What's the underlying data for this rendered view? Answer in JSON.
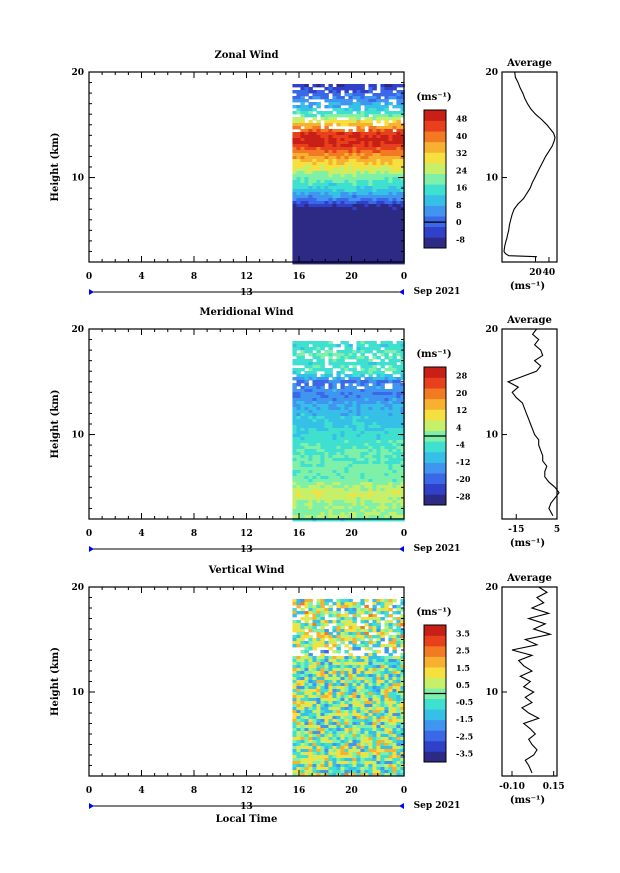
{
  "chart_data": [
    {
      "type": "heatmap",
      "title": "Zonal Wind",
      "ylabel": "Height (km)",
      "ylim": [
        2,
        20
      ],
      "yticks": [
        "20",
        "10"
      ],
      "xticks": [
        "0",
        "4",
        "8",
        "12",
        "16",
        "20",
        "0"
      ],
      "day_label": "13",
      "date_label": "Sep 2021",
      "data_start_hour": 15.5,
      "colorbar_unit": "(ms⁻¹)",
      "colorbar_labels": [
        "48",
        "40",
        "32",
        "24",
        "16",
        "8",
        "0",
        "-8"
      ],
      "colorbar_range": [
        -12,
        52
      ],
      "colors": [
        "#2d2a86",
        "#3040c8",
        "#3a68e6",
        "#3f95ef",
        "#36c0e8",
        "#3fe0d0",
        "#7ff0a8",
        "#c6f06a",
        "#f5e040",
        "#f7b030",
        "#f27a22",
        "#e8401c",
        "#c81f16"
      ],
      "profile_levels": [
        {
          "h": 2.5,
          "v": 22
        },
        {
          "h": 2.6,
          "v": -20
        },
        {
          "h": 2.8,
          "v": -25
        },
        {
          "h": 3.0,
          "v": -27
        },
        {
          "h": 3.5,
          "v": -26
        },
        {
          "h": 4.0,
          "v": -24
        },
        {
          "h": 4.2,
          "v": -23
        },
        {
          "h": 4.5,
          "v": -22
        },
        {
          "h": 5.0,
          "v": -20
        },
        {
          "h": 5.5,
          "v": -19
        },
        {
          "h": 6.0,
          "v": -17
        },
        {
          "h": 6.5,
          "v": -15
        },
        {
          "h": 7.0,
          "v": -12
        },
        {
          "h": 7.5,
          "v": -6
        },
        {
          "h": 8.0,
          "v": 2
        },
        {
          "h": 8.5,
          "v": 7
        },
        {
          "h": 9.0,
          "v": 12
        },
        {
          "h": 9.5,
          "v": 15
        },
        {
          "h": 10.0,
          "v": 19
        },
        {
          "h": 10.5,
          "v": 23
        },
        {
          "h": 11.0,
          "v": 27
        },
        {
          "h": 11.5,
          "v": 31
        },
        {
          "h": 12.0,
          "v": 35
        },
        {
          "h": 12.5,
          "v": 40
        },
        {
          "h": 13.0,
          "v": 45
        },
        {
          "h": 13.5,
          "v": 48
        },
        {
          "h": 13.8,
          "v": 49
        },
        {
          "h": 14.2,
          "v": 47
        },
        {
          "h": 14.6,
          "v": 42
        },
        {
          "h": 15.0,
          "v": 37
        },
        {
          "h": 15.5,
          "v": 29
        },
        {
          "h": 16.0,
          "v": 20
        },
        {
          "h": 16.5,
          "v": 13
        },
        {
          "h": 17.0,
          "v": 8
        },
        {
          "h": 17.5,
          "v": 4
        },
        {
          "h": 18.0,
          "v": 1
        },
        {
          "h": 18.5,
          "v": -3
        },
        {
          "h": 19.0,
          "v": -6
        },
        {
          "h": 19.5,
          "v": -10
        },
        {
          "h": 20.0,
          "v": -11
        }
      ],
      "profile_title": "Average",
      "profile_xticks": [
        {
          "v": 20,
          "label": "20"
        },
        {
          "v": 40,
          "label": "40"
        }
      ],
      "profile_xlim": [
        -30,
        52
      ],
      "profile_unit": "(ms⁻¹)"
    },
    {
      "type": "heatmap",
      "title": "Meridional Wind",
      "ylabel": "Height (km)",
      "ylim": [
        2,
        20
      ],
      "yticks": [
        "20",
        "10"
      ],
      "xticks": [
        "0",
        "4",
        "8",
        "12",
        "16",
        "20",
        "0"
      ],
      "day_label": "13",
      "date_label": "Sep 2021",
      "data_start_hour": 15.5,
      "colorbar_unit": "(ms⁻¹)",
      "colorbar_labels": [
        "28",
        "20",
        "12",
        "4",
        "-4",
        "-12",
        "-20",
        "-28"
      ],
      "colorbar_range": [
        -32,
        32
      ],
      "colors": [
        "#2d2a86",
        "#3040c8",
        "#3a68e6",
        "#3f95ef",
        "#36c0e8",
        "#3fe0d0",
        "#7ff0a8",
        "#c6f06a",
        "#f5e040",
        "#f7b030",
        "#f27a22",
        "#e8401c",
        "#c81f16"
      ],
      "profile_levels": [
        {
          "h": 2.3,
          "v": 3
        },
        {
          "h": 3.0,
          "v": 1
        },
        {
          "h": 3.5,
          "v": 2
        },
        {
          "h": 4.0,
          "v": 4
        },
        {
          "h": 4.5,
          "v": 6
        },
        {
          "h": 5.0,
          "v": 4
        },
        {
          "h": 5.5,
          "v": 1
        },
        {
          "h": 6.0,
          "v": -1
        },
        {
          "h": 6.5,
          "v": -1
        },
        {
          "h": 7.0,
          "v": 0
        },
        {
          "h": 7.5,
          "v": -2
        },
        {
          "h": 8.0,
          "v": -2
        },
        {
          "h": 8.5,
          "v": -3
        },
        {
          "h": 9.0,
          "v": -4
        },
        {
          "h": 9.5,
          "v": -4
        },
        {
          "h": 10.0,
          "v": -6
        },
        {
          "h": 10.5,
          "v": -7
        },
        {
          "h": 11.0,
          "v": -8
        },
        {
          "h": 11.5,
          "v": -9
        },
        {
          "h": 12.0,
          "v": -10
        },
        {
          "h": 12.5,
          "v": -11
        },
        {
          "h": 13.0,
          "v": -12
        },
        {
          "h": 13.5,
          "v": -15
        },
        {
          "h": 14.0,
          "v": -17
        },
        {
          "h": 14.5,
          "v": -14
        },
        {
          "h": 15.0,
          "v": -19
        },
        {
          "h": 15.5,
          "v": -12
        },
        {
          "h": 16.0,
          "v": -5
        },
        {
          "h": 16.5,
          "v": -3
        },
        {
          "h": 17.0,
          "v": -6
        },
        {
          "h": 17.5,
          "v": -2
        },
        {
          "h": 18.0,
          "v": -3
        },
        {
          "h": 18.5,
          "v": -6
        },
        {
          "h": 19.0,
          "v": -4
        },
        {
          "h": 19.5,
          "v": -7
        },
        {
          "h": 20.0,
          "v": -5
        }
      ],
      "profile_title": "Average",
      "profile_xticks": [
        {
          "v": -15,
          "label": "-15"
        },
        {
          "v": 5,
          "label": "5"
        }
      ],
      "profile_xlim": [
        -22,
        5
      ],
      "profile_unit": "(ms⁻¹)"
    },
    {
      "type": "heatmap",
      "title": "Vertical Wind",
      "xlabel": "Local Time",
      "ylabel": "Height (km)",
      "ylim": [
        2,
        20
      ],
      "yticks": [
        "20",
        "10"
      ],
      "xticks": [
        "0",
        "4",
        "8",
        "12",
        "16",
        "20",
        "0"
      ],
      "day_label": "13",
      "date_label": "Sep 2021",
      "data_start_hour": 15.5,
      "colorbar_unit": "(ms⁻¹)",
      "colorbar_labels": [
        "3.5",
        "2.5",
        "1.5",
        "0.5",
        "-0.5",
        "-1.5",
        "-2.5",
        "-3.5"
      ],
      "colorbar_range": [
        -4,
        4
      ],
      "colors": [
        "#2d2a86",
        "#3040c8",
        "#3a68e6",
        "#3f95ef",
        "#36c0e8",
        "#3fe0d0",
        "#7ff0a8",
        "#c6f06a",
        "#f5e040",
        "#f7b030",
        "#f27a22",
        "#e8401c",
        "#c81f16"
      ],
      "profile_levels": [
        {
          "h": 2.3,
          "v": 0.02
        },
        {
          "h": 3.0,
          "v": 0.0
        },
        {
          "h": 3.5,
          "v": -0.02
        },
        {
          "h": 4.0,
          "v": 0.03
        },
        {
          "h": 4.5,
          "v": 0.05
        },
        {
          "h": 5.0,
          "v": 0.02
        },
        {
          "h": 5.5,
          "v": 0.0
        },
        {
          "h": 6.0,
          "v": 0.04
        },
        {
          "h": 6.5,
          "v": 0.01
        },
        {
          "h": 7.0,
          "v": -0.03
        },
        {
          "h": 7.5,
          "v": 0.06
        },
        {
          "h": 8.0,
          "v": 0.0
        },
        {
          "h": 8.5,
          "v": -0.04
        },
        {
          "h": 9.0,
          "v": 0.02
        },
        {
          "h": 9.5,
          "v": -0.02
        },
        {
          "h": 10.0,
          "v": 0.03
        },
        {
          "h": 10.5,
          "v": -0.03
        },
        {
          "h": 11.0,
          "v": 0.01
        },
        {
          "h": 11.5,
          "v": -0.05
        },
        {
          "h": 12.0,
          "v": 0.02
        },
        {
          "h": 12.5,
          "v": -0.03
        },
        {
          "h": 13.0,
          "v": -0.06
        },
        {
          "h": 13.5,
          "v": 0.02
        },
        {
          "h": 14.0,
          "v": -0.1
        },
        {
          "h": 14.5,
          "v": 0.05
        },
        {
          "h": 15.0,
          "v": -0.02
        },
        {
          "h": 15.5,
          "v": 0.13
        },
        {
          "h": 16.0,
          "v": 0.03
        },
        {
          "h": 16.5,
          "v": 0.1
        },
        {
          "h": 17.0,
          "v": 0.0
        },
        {
          "h": 17.5,
          "v": 0.12
        },
        {
          "h": 18.0,
          "v": 0.02
        },
        {
          "h": 18.5,
          "v": 0.09
        },
        {
          "h": 19.0,
          "v": 0.05
        },
        {
          "h": 19.5,
          "v": 0.11
        },
        {
          "h": 20.0,
          "v": 0.06
        }
      ],
      "profile_title": "Average",
      "profile_xticks": [
        {
          "v": -0.1,
          "label": "-0.10"
        },
        {
          "v": 0.15,
          "label": "0.15"
        }
      ],
      "profile_xlim": [
        -0.16,
        0.17
      ],
      "profile_unit": "(ms⁻¹)"
    }
  ]
}
